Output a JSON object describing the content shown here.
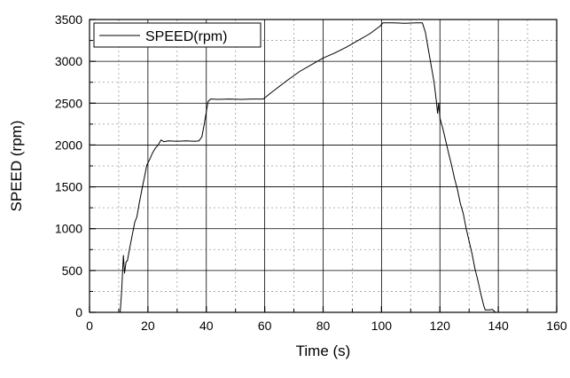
{
  "chart_data": {
    "type": "line",
    "xlabel": "Time (s)",
    "ylabel": "SPEED (rpm)",
    "xlim": [
      0,
      160
    ],
    "ylim": [
      0,
      3500
    ],
    "xticks": [
      "0",
      "20",
      "40",
      "60",
      "80",
      "100",
      "120",
      "140",
      "160"
    ],
    "yticks": [
      "0",
      "500",
      "1000",
      "1500",
      "2000",
      "2500",
      "3000",
      "3500"
    ],
    "grid": true,
    "legend_position": "top-left",
    "series": [
      {
        "name": "SPEED(rpm)",
        "color": "#000000",
        "points": [
          [
            10.5,
            0
          ],
          [
            11.0,
            250
          ],
          [
            11.6,
            680
          ],
          [
            12.0,
            470
          ],
          [
            12.5,
            600
          ],
          [
            13.0,
            620
          ],
          [
            13.8,
            780
          ],
          [
            14.6,
            920
          ],
          [
            15.5,
            1080
          ],
          [
            16.2,
            1140
          ],
          [
            17.0,
            1300
          ],
          [
            18.0,
            1480
          ],
          [
            19.0,
            1650
          ],
          [
            19.6,
            1760
          ],
          [
            20.5,
            1820
          ],
          [
            21.5,
            1900
          ],
          [
            22.5,
            1960
          ],
          [
            23.5,
            2000
          ],
          [
            24.5,
            2060
          ],
          [
            25.5,
            2040
          ],
          [
            27.0,
            2050
          ],
          [
            30.0,
            2045
          ],
          [
            33.0,
            2050
          ],
          [
            36.0,
            2045
          ],
          [
            37.5,
            2050
          ],
          [
            38.5,
            2100
          ],
          [
            39.3,
            2250
          ],
          [
            40.0,
            2400
          ],
          [
            40.6,
            2520
          ],
          [
            41.5,
            2550
          ],
          [
            44.0,
            2545
          ],
          [
            48.0,
            2550
          ],
          [
            52.0,
            2545
          ],
          [
            56.0,
            2550
          ],
          [
            59.5,
            2550
          ],
          [
            62.0,
            2620
          ],
          [
            65.0,
            2700
          ],
          [
            68.0,
            2780
          ],
          [
            72.0,
            2880
          ],
          [
            76.0,
            2960
          ],
          [
            80.0,
            3040
          ],
          [
            84.0,
            3100
          ],
          [
            88.0,
            3170
          ],
          [
            92.0,
            3250
          ],
          [
            96.0,
            3330
          ],
          [
            99.5,
            3420
          ],
          [
            100.5,
            3460
          ],
          [
            104.0,
            3460
          ],
          [
            108.0,
            3455
          ],
          [
            112.0,
            3460
          ],
          [
            114.0,
            3460
          ],
          [
            115.0,
            3350
          ],
          [
            116.0,
            3150
          ],
          [
            117.0,
            2950
          ],
          [
            118.0,
            2750
          ],
          [
            118.8,
            2520
          ],
          [
            119.2,
            2380
          ],
          [
            119.6,
            2500
          ],
          [
            120.0,
            2320
          ],
          [
            121.0,
            2200
          ],
          [
            122.0,
            2050
          ],
          [
            123.0,
            1900
          ],
          [
            124.0,
            1760
          ],
          [
            125.0,
            1600
          ],
          [
            126.0,
            1470
          ],
          [
            127.0,
            1300
          ],
          [
            128.0,
            1180
          ],
          [
            129.0,
            1000
          ],
          [
            130.0,
            850
          ],
          [
            131.0,
            700
          ],
          [
            132.0,
            520
          ],
          [
            133.0,
            380
          ],
          [
            134.0,
            220
          ],
          [
            135.0,
            80
          ],
          [
            135.5,
            30
          ],
          [
            137.0,
            30
          ],
          [
            138.0,
            35
          ],
          [
            139.0,
            0
          ]
        ]
      }
    ]
  }
}
